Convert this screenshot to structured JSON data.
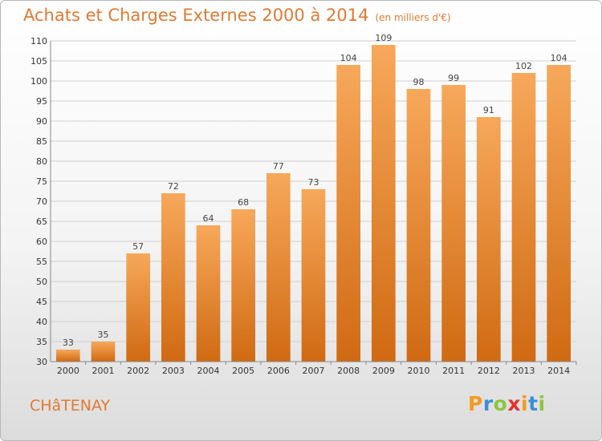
{
  "title": "Achats et Charges Externes 2000 à 2014",
  "subtitle": "(en milliers d'€)",
  "commune": "CHâTENAY",
  "logo": {
    "letters": [
      "P",
      "r",
      "o",
      "x",
      "i",
      "t",
      "i"
    ],
    "colors": [
      "#f39a1f",
      "#3a8fd8",
      "#8cc63f",
      "#e8312f",
      "#f39a1f",
      "#3a8fd8",
      "#8cc63f"
    ]
  },
  "colors": {
    "accent": "#e07a32",
    "bar_top": "#f7a85a",
    "bar_bottom": "#d06a12"
  },
  "chart_data": {
    "type": "bar",
    "categories": [
      "2000",
      "2001",
      "2002",
      "2003",
      "2004",
      "2005",
      "2006",
      "2007",
      "2008",
      "2009",
      "2010",
      "2011",
      "2012",
      "2013",
      "2014"
    ],
    "values": [
      33,
      35,
      57,
      72,
      64,
      68,
      77,
      73,
      104,
      109,
      98,
      99,
      91,
      102,
      104
    ],
    "ylim": [
      30,
      110
    ],
    "yticks": [
      30,
      35,
      40,
      45,
      50,
      55,
      60,
      65,
      70,
      75,
      80,
      85,
      90,
      95,
      100,
      105,
      110
    ],
    "grid": true,
    "xlabel": "",
    "ylabel": ""
  }
}
